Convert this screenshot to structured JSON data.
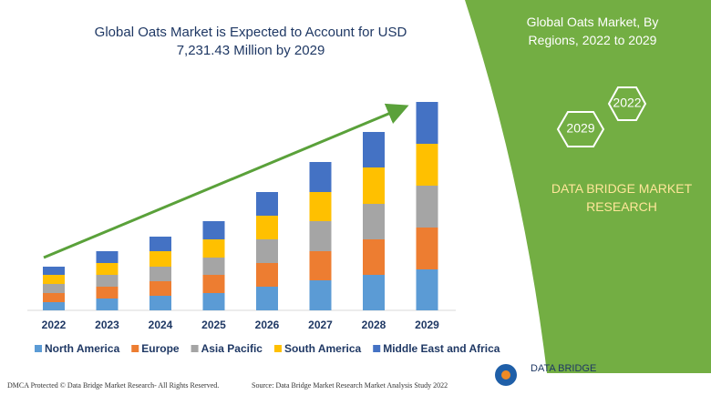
{
  "chart_data": {
    "type": "stacked-bar",
    "title": "Global Oats Market is Expected to Account for USD 7,231.43 Million by 2029",
    "categories": [
      "2022",
      "2023",
      "2024",
      "2025",
      "2026",
      "2027",
      "2028",
      "2029"
    ],
    "series": [
      {
        "name": "North America",
        "color": "#5b9bd5",
        "values": [
          9,
          13,
          16,
          19,
          26,
          33,
          39,
          45
        ]
      },
      {
        "name": "Europe",
        "color": "#ed7d31",
        "values": [
          10,
          13,
          16,
          20,
          26,
          32,
          39,
          46
        ]
      },
      {
        "name": "Asia Pacific",
        "color": "#a5a5a5",
        "values": [
          10,
          13,
          16,
          19,
          26,
          33,
          39,
          46
        ]
      },
      {
        "name": "South America",
        "color": "#ffc000",
        "values": [
          10,
          13,
          17,
          20,
          26,
          32,
          40,
          46
        ]
      },
      {
        "name": "Middle East and Africa",
        "color": "#4472c4",
        "values": [
          9,
          13,
          16,
          20,
          26,
          33,
          39,
          46
        ]
      }
    ],
    "ylim": [
      0,
      240
    ]
  },
  "side_panel": {
    "title": "Global Oats Market, By Regions, 2022 to 2029",
    "badges": [
      "2022",
      "2029"
    ],
    "brand": "DATA BRIDGE MARKET RESEARCH"
  },
  "footer": {
    "left": "DMCA Protected © Data Bridge Market Research- All Rights Reserved.",
    "right": "Source: Data Bridge Market Research Market Analysis Study 2022",
    "logo": "DATA BRIDGE"
  }
}
